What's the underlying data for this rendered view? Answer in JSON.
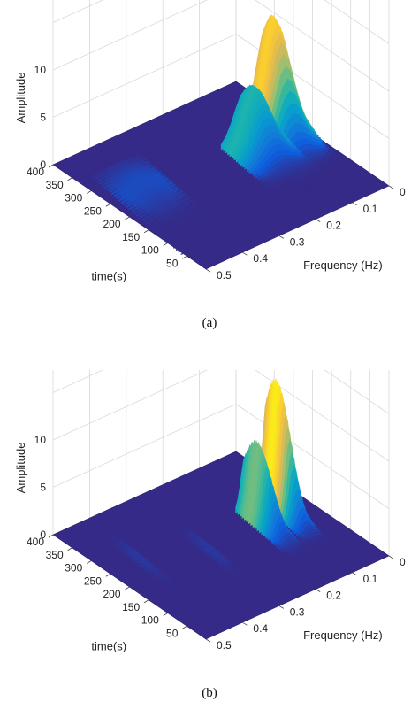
{
  "chart_data": [
    {
      "type": "surface3d",
      "panel_label": "(a)",
      "xlabel": "Frequency (Hz)",
      "ylabel": "time(s)",
      "zlabel": "Amplitude",
      "xlim": [
        0,
        0.5
      ],
      "ylim": [
        0,
        400
      ],
      "zlim": [
        0,
        15
      ],
      "x_ticks": [
        "0",
        "0.1",
        "0.2",
        "0.3",
        "0.4",
        "0.5"
      ],
      "y_ticks": [
        "50",
        "100",
        "150",
        "200",
        "250",
        "300",
        "350",
        "400"
      ],
      "z_ticks": [
        "0",
        "5",
        "10"
      ],
      "grid": true,
      "colormap": "parula",
      "ridges": [
        {
          "freq_start": 0.1,
          "freq_end": 0.05,
          "time_start": 30,
          "time_end": 270,
          "peak_amplitude": 12,
          "peak_time": 250,
          "freq_width": 0.03
        },
        {
          "freq_start": 0.15,
          "freq_end": 0.12,
          "time_start": 30,
          "time_end": 260,
          "peak_amplitude": 6.2,
          "peak_time": 235,
          "freq_width": 0.03
        },
        {
          "freq_start": 0.44,
          "freq_end": 0.4,
          "time_start": 60,
          "time_end": 330,
          "peak_amplitude": 1.0,
          "peak_time": 250,
          "freq_width": 0.03
        }
      ]
    },
    {
      "type": "surface3d",
      "panel_label": "(b)",
      "xlabel": "Frequency (Hz)",
      "ylabel": "time(s)",
      "zlabel": "Amplitude",
      "xlim": [
        0,
        0.5
      ],
      "ylim": [
        0,
        400
      ],
      "zlim": [
        0,
        15
      ],
      "x_ticks": [
        "0",
        "0.1",
        "0.2",
        "0.3",
        "0.4",
        "0.5"
      ],
      "y_ticks": [
        "50",
        "100",
        "150",
        "200",
        "250",
        "300",
        "350",
        "400"
      ],
      "z_ticks": [
        "0",
        "5",
        "10"
      ],
      "grid": true,
      "colormap": "parula",
      "ridges": [
        {
          "freq_start": 0.1,
          "freq_end": 0.05,
          "time_start": 30,
          "time_end": 270,
          "peak_amplitude": 13,
          "peak_time": 240,
          "freq_width": 0.012
        },
        {
          "freq_start": 0.15,
          "freq_end": 0.12,
          "time_start": 30,
          "time_end": 260,
          "peak_amplitude": 8,
          "peak_time": 225,
          "freq_width": 0.012
        },
        {
          "freq_start": 0.3,
          "freq_end": 0.27,
          "time_start": 40,
          "time_end": 300,
          "peak_amplitude": 0.4,
          "peak_time": 200,
          "freq_width": 0.006
        },
        {
          "freq_start": 0.44,
          "freq_end": 0.41,
          "time_start": 60,
          "time_end": 330,
          "peak_amplitude": 0.4,
          "peak_time": 250,
          "freq_width": 0.006
        }
      ]
    }
  ],
  "captions": {
    "a": "(a)",
    "b": "(b)"
  },
  "colors": {
    "floor": "#352a87",
    "peak": "#f9fb0e",
    "grid": "#d9d9d9",
    "text": "#222222"
  }
}
